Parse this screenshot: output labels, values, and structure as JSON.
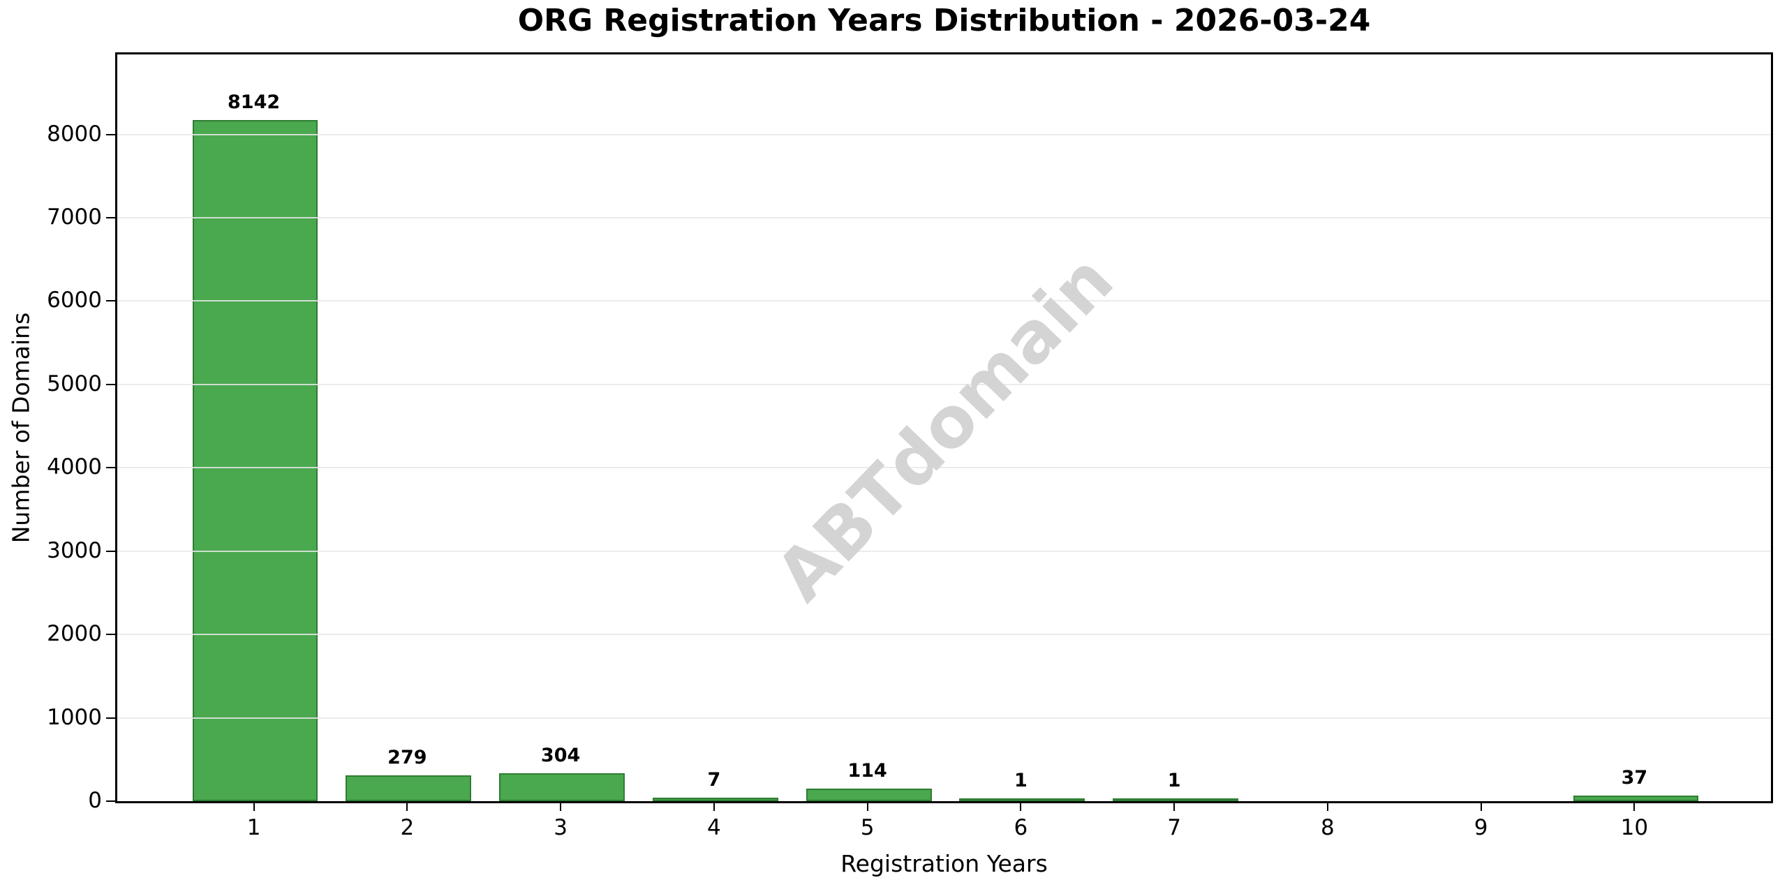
{
  "figure": {
    "watermark": "ABTdomain"
  },
  "chart_data": {
    "type": "bar",
    "title": "ORG Registration Years Distribution - 2026-03-24",
    "xlabel": "Registration Years",
    "ylabel": "Number of Domains",
    "categories": [
      "1",
      "2",
      "3",
      "4",
      "5",
      "6",
      "7",
      "8",
      "9",
      "10"
    ],
    "values": [
      8142,
      279,
      304,
      7,
      114,
      1,
      1,
      0,
      0,
      37
    ],
    "bar_labels": [
      "8142",
      "279",
      "304",
      "7",
      "114",
      "1",
      "1",
      "",
      "",
      "37"
    ],
    "yticks": [
      0,
      1000,
      2000,
      3000,
      4000,
      5000,
      6000,
      7000,
      8000
    ],
    "ylim": [
      0,
      8960
    ],
    "xlim": [
      0.11,
      10.89
    ],
    "bar_width_data_units": 0.8,
    "grid": "horizontal",
    "legend": "none",
    "colors": {
      "bar_fill": "#4aa84f",
      "bar_edge": "#2e7d32",
      "gridline": "rgba(232,232,232,0.85)",
      "watermark": "#d4d4d4",
      "text": "#000000",
      "background": "#ffffff"
    }
  }
}
